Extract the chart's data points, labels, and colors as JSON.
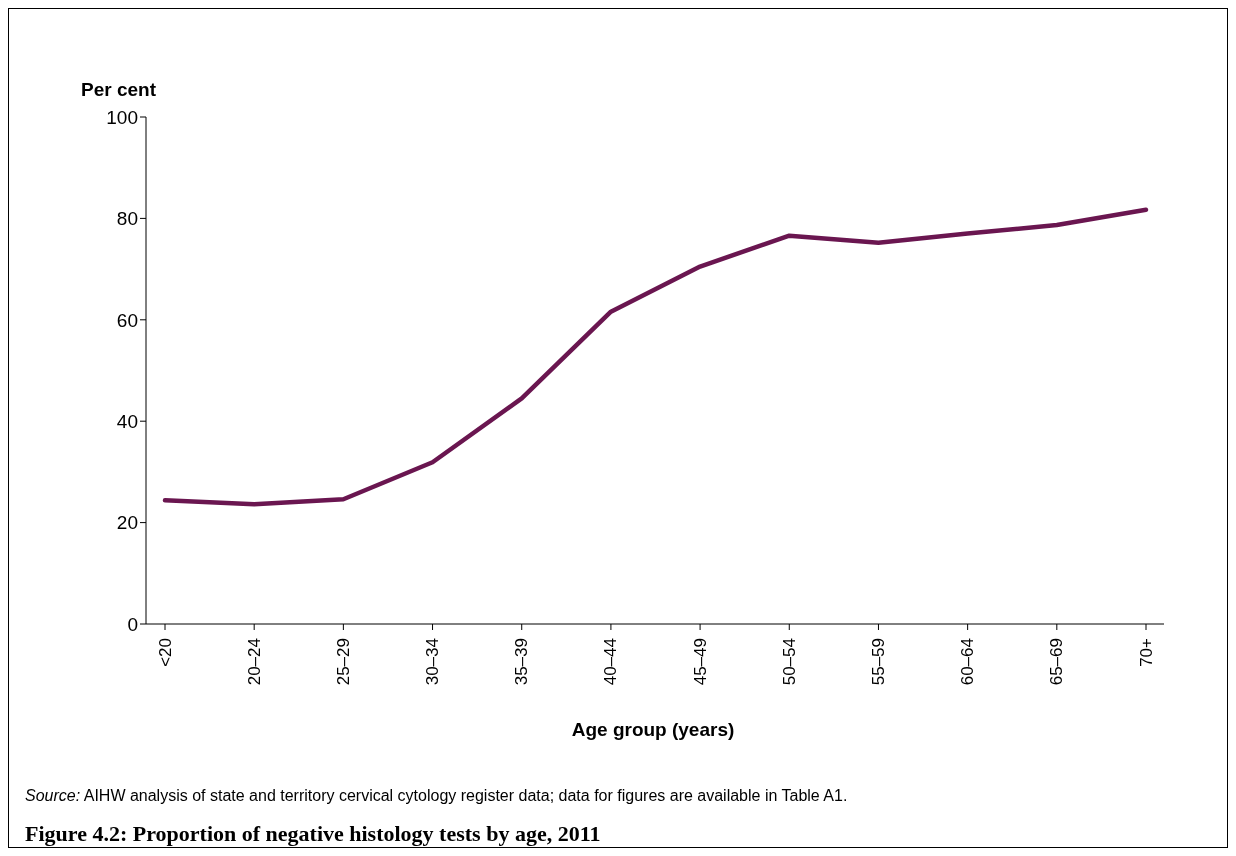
{
  "chart_data": {
    "type": "line",
    "title": "Figure 4.2: Proportion of negative histology tests by age, 2011",
    "xlabel": "Age group (years)",
    "ylabel": "Per cent",
    "annotations": [
      "Source: AIHW analysis of state and territory cervical cytology register data; data for figures are available in Table A1."
    ],
    "categories": [
      "<20",
      "20–24",
      "25–29",
      "30–34",
      "35–39",
      "40–44",
      "45–49",
      "50–54",
      "55–59",
      "60–64",
      "65–69",
      "70+"
    ],
    "series": [
      {
        "color": "#6a1650",
        "values": [
          24.4,
          23.6,
          24.6,
          31.9,
          44.5,
          61.6,
          70.5,
          76.6,
          75.2,
          77.0,
          78.7,
          81.7
        ]
      }
    ],
    "ylim": [
      0,
      100
    ],
    "yticks": [
      0,
      20,
      40,
      60,
      80,
      100
    ],
    "grid": false,
    "legend": false,
    "marker": "none",
    "line_style": "solid"
  }
}
